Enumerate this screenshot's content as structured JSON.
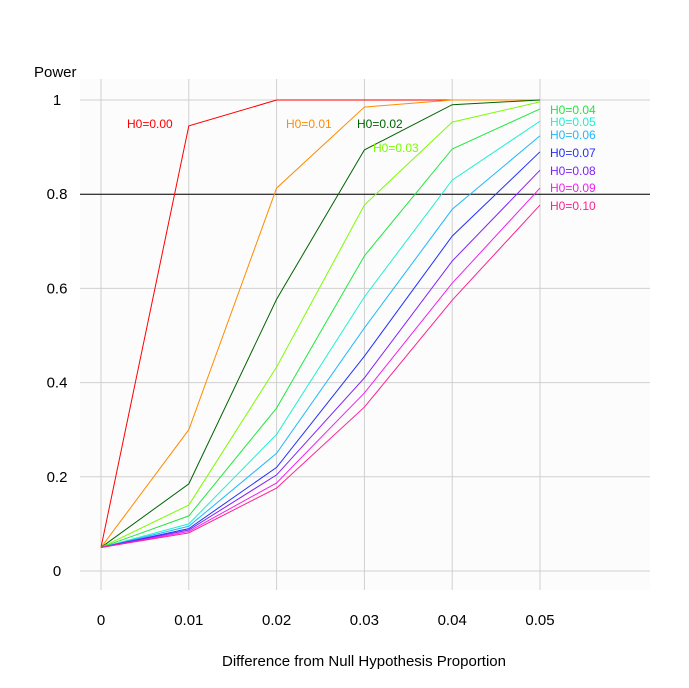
{
  "chart_data": {
    "type": "line",
    "title": "",
    "xlabel": "Difference from Null Hypothesis Proportion",
    "ylabel": "Power",
    "x": [
      0,
      0.01,
      0.02,
      0.03,
      0.04,
      0.05
    ],
    "xticks": [
      "0",
      "0.01",
      "0.02",
      "0.03",
      "0.04",
      "0.05"
    ],
    "yticks": [
      "0",
      "0.2",
      "0.4",
      "0.6",
      "0.8",
      "1"
    ],
    "ytick_values": [
      0,
      0.2,
      0.4,
      0.6,
      0.8,
      1
    ],
    "xlim": [
      -0.0025,
      0.0625
    ],
    "ylim": [
      -0.04,
      1.045
    ],
    "grid": true,
    "reference_line": 0.8,
    "series": [
      {
        "name": "H0=0.00",
        "color": "#ff0000",
        "values": [
          0.05,
          0.945,
          1.0,
          1.0,
          1.0,
          1.0
        ]
      },
      {
        "name": "H0=0.01",
        "color": "#ff8c00",
        "values": [
          0.05,
          0.3,
          0.813,
          0.985,
          1.0,
          1.0
        ]
      },
      {
        "name": "H0=0.02",
        "color": "#006400",
        "values": [
          0.05,
          0.185,
          0.577,
          0.894,
          0.99,
          1.0
        ]
      },
      {
        "name": "H0=0.03",
        "color": "#7cfc00",
        "values": [
          0.05,
          0.14,
          0.433,
          0.777,
          0.953,
          0.996
        ]
      },
      {
        "name": "H0=0.04",
        "color": "#20e840",
        "values": [
          0.05,
          0.117,
          0.346,
          0.669,
          0.896,
          0.981
        ]
      },
      {
        "name": "H0=0.05",
        "color": "#20f0d0",
        "values": [
          0.05,
          0.1,
          0.29,
          0.582,
          0.83,
          0.955
        ]
      },
      {
        "name": "H0=0.06",
        "color": "#20b8ff",
        "values": [
          0.05,
          0.095,
          0.25,
          0.516,
          0.768,
          0.924
        ]
      },
      {
        "name": "H0=0.07",
        "color": "#2030ff",
        "values": [
          0.05,
          0.09,
          0.22,
          0.456,
          0.711,
          0.89
        ]
      },
      {
        "name": "H0=0.08",
        "color": "#8020ff",
        "values": [
          0.05,
          0.087,
          0.204,
          0.41,
          0.658,
          0.851
        ]
      },
      {
        "name": "H0=0.09",
        "color": "#f020f0",
        "values": [
          0.05,
          0.084,
          0.187,
          0.378,
          0.611,
          0.813
        ]
      },
      {
        "name": "H0=0.10",
        "color": "#ff2090",
        "values": [
          0.05,
          0.081,
          0.176,
          0.348,
          0.575,
          0.777
        ]
      }
    ]
  }
}
